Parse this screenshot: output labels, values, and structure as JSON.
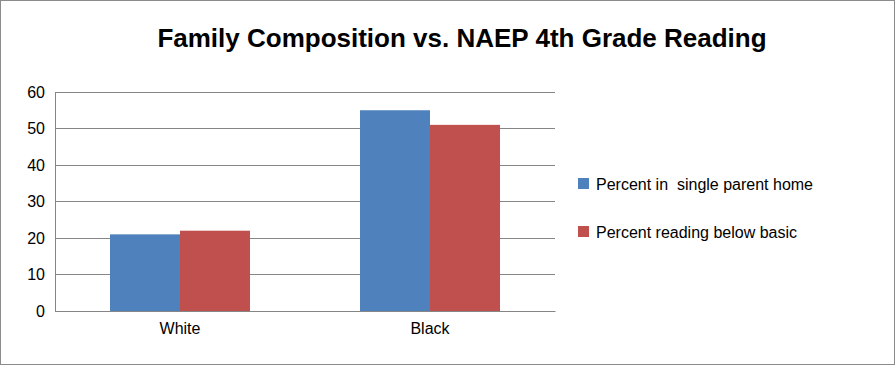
{
  "chart_data": {
    "type": "bar",
    "title": "Family Composition vs. NAEP 4th Grade Reading",
    "categories": [
      "White",
      "Black"
    ],
    "series": [
      {
        "name": "Percent in  single parent home",
        "color": "#4f81bd",
        "values": [
          21,
          55
        ]
      },
      {
        "name": "Percent reading below basic",
        "color": "#c0504d",
        "values": [
          22,
          51
        ]
      }
    ],
    "ylim": [
      0,
      60
    ],
    "yticks": [
      0,
      10,
      20,
      30,
      40,
      50,
      60
    ],
    "grid": true,
    "legend": "right"
  }
}
